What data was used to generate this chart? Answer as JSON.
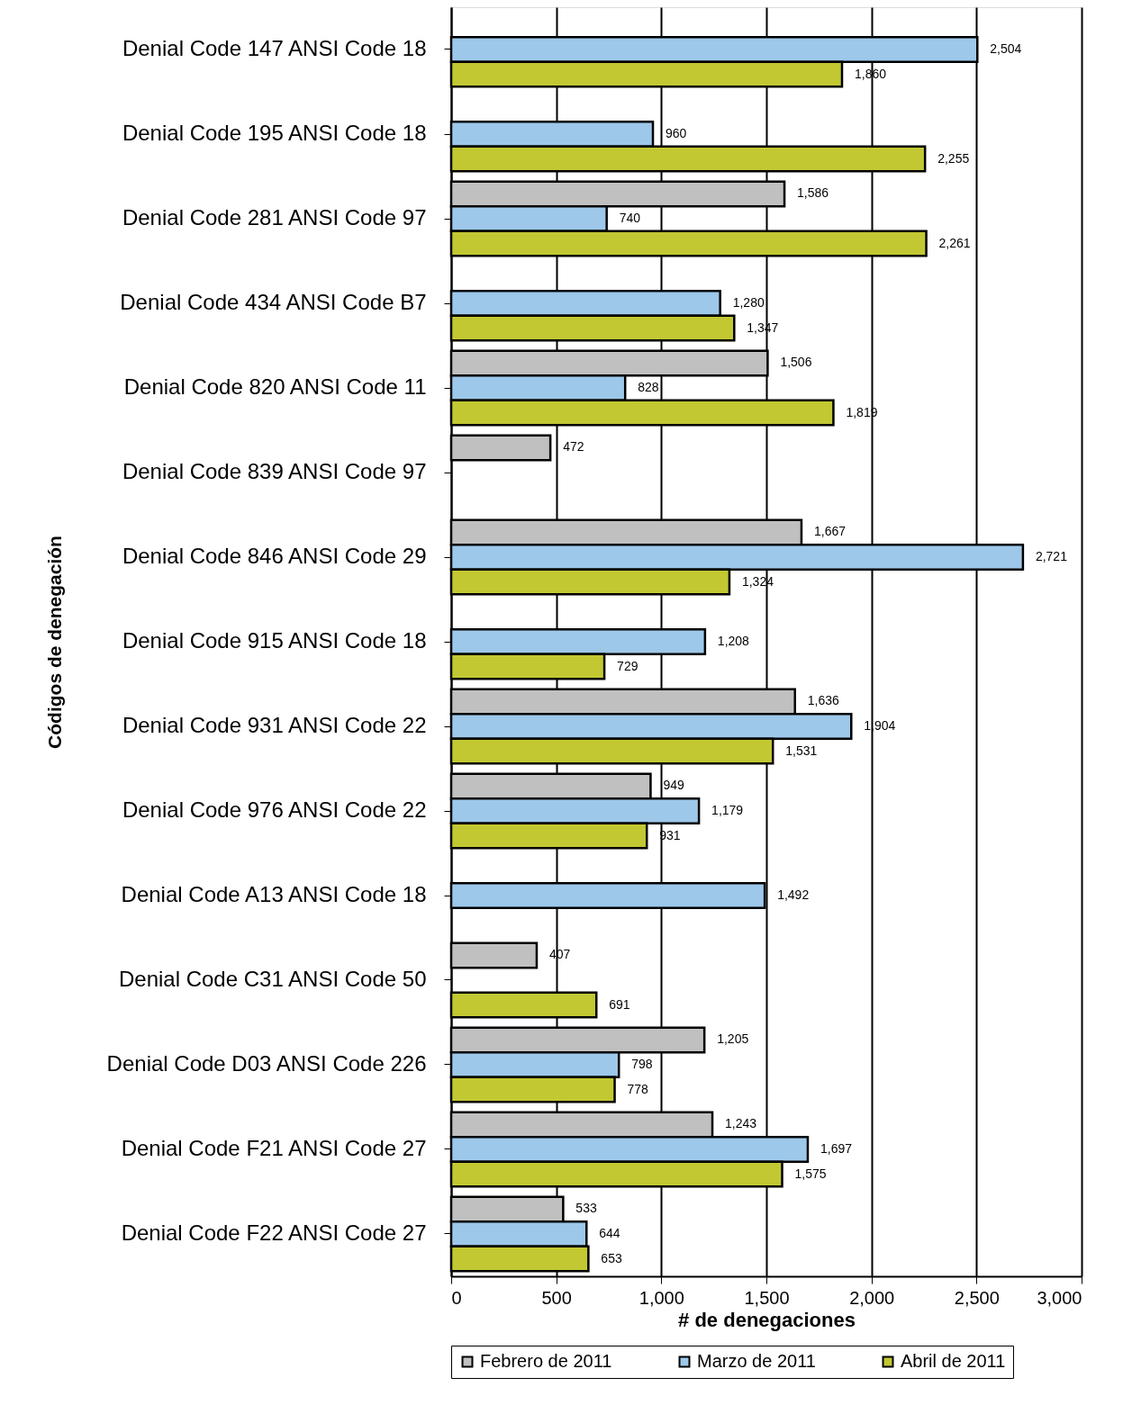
{
  "chart_data": {
    "type": "bar",
    "orientation": "horizontal",
    "xlabel": "# de denegaciones",
    "ylabel": "Códigos de denegación",
    "categories": [
      "Denial Code 147 ANSI Code 18",
      "Denial Code 195 ANSI Code 18",
      "Denial Code 281 ANSI Code 97",
      "Denial Code 434 ANSI Code B7",
      "Denial Code 820 ANSI Code 11",
      "Denial Code 839 ANSI Code 97",
      "Denial Code 846 ANSI Code 29",
      "Denial Code 915 ANSI Code 18",
      "Denial Code 931 ANSI Code 22",
      "Denial Code 976 ANSI Code 22",
      "Denial Code A13 ANSI Code 18",
      "Denial Code C31 ANSI Code 50",
      "Denial Code D03 ANSI Code 226",
      "Denial Code F21 ANSI Code 27",
      "Denial Code F22 ANSI Code 27"
    ],
    "series": [
      {
        "name": "Febrero de 2011",
        "color": "#c0c0c0",
        "values": [
          null,
          null,
          1586,
          null,
          1506,
          472,
          1667,
          null,
          1636,
          949,
          null,
          407,
          1205,
          1243,
          533
        ],
        "value_labels": [
          null,
          null,
          "1,586",
          null,
          "1,506",
          "472",
          "1,667",
          null,
          "1,636",
          "949",
          null,
          "407",
          "1,205",
          "1,243",
          "533"
        ]
      },
      {
        "name": "Marzo de 2011",
        "color": "#9dc8ea",
        "values": [
          2504,
          960,
          740,
          1280,
          828,
          null,
          2721,
          1208,
          1904,
          1179,
          1492,
          null,
          798,
          1697,
          644
        ],
        "value_labels": [
          "2,504",
          "960",
          "740",
          "1,280",
          "828",
          null,
          "2,721",
          "1,208",
          "1,904",
          "1,179",
          "1,492",
          null,
          "798",
          "1,697",
          "644"
        ]
      },
      {
        "name": "Abril de 2011",
        "color": "#c2c832",
        "values": [
          1860,
          2255,
          2261,
          1347,
          1819,
          null,
          1324,
          729,
          1531,
          931,
          null,
          691,
          778,
          1575,
          653
        ],
        "value_labels": [
          "1,860",
          "2,255",
          "2,261",
          "1,347",
          "1,819",
          null,
          "1,324",
          "729",
          "1,531",
          "931",
          null,
          "691",
          "778",
          "1,575",
          "653"
        ]
      }
    ],
    "xlim": [
      0,
      3000
    ],
    "xticks": [
      0,
      500,
      {
        "value": 1000,
        "label": "1,000"
      },
      {
        "value": 1500,
        "label": "1,500"
      },
      {
        "value": 2000,
        "label": "2,000"
      },
      {
        "value": 2500,
        "label": "2,500"
      },
      {
        "value": 3000,
        "label": "3,000"
      }
    ],
    "grid": "x",
    "legend": "bottom"
  }
}
